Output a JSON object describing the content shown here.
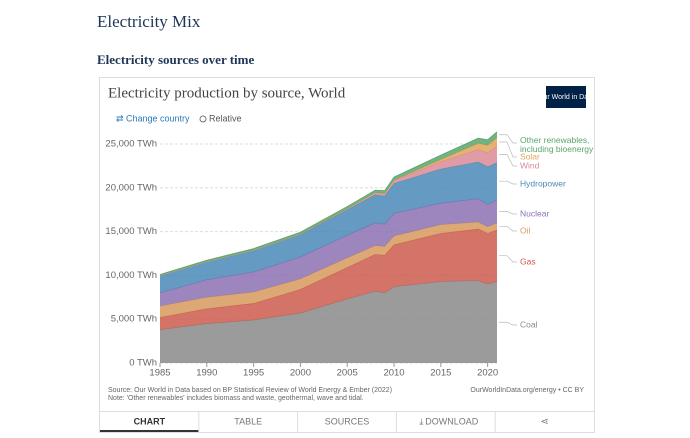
{
  "page": {
    "heading": "Electricity Mix",
    "subheading": "Electricity sources over time"
  },
  "chart_data": {
    "type": "stacked_area",
    "title": "Electricity production by source, World",
    "logo": "Our World in Data",
    "controls": [
      "Change country",
      "Relative"
    ],
    "x": [
      1985,
      1990,
      1995,
      2000,
      2005,
      2008,
      2009,
      2010,
      2015,
      2019,
      2020,
      2021
    ],
    "xlim": [
      1985,
      2021
    ],
    "xticks": [
      1985,
      1990,
      1995,
      2000,
      2005,
      2010,
      2015,
      2020
    ],
    "ylim": [
      0,
      25000
    ],
    "yticks": [
      {
        "value": 0,
        "label": "0 TWh"
      },
      {
        "value": 5000,
        "label": "5,000 TWh"
      },
      {
        "value": 10000,
        "label": "10,000 TWh"
      },
      {
        "value": 15000,
        "label": "15,000 TWh"
      },
      {
        "value": 20000,
        "label": "20,000 TWh"
      },
      {
        "value": 25000,
        "label": "25,000 TWh"
      }
    ],
    "grid": true,
    "series": [
      {
        "name": "Coal",
        "color": "#8a8a8a",
        "values": [
          3800,
          4500,
          4900,
          5700,
          7300,
          8200,
          8000,
          8700,
          9300,
          9400,
          9000,
          9300
        ]
      },
      {
        "name": "Gas",
        "color": "#cc5a4c",
        "values": [
          1400,
          1700,
          1900,
          2700,
          3600,
          4200,
          4300,
          4800,
          5500,
          5900,
          5800,
          5900
        ]
      },
      {
        "name": "Oil",
        "color": "#d69a5e",
        "values": [
          1300,
          1300,
          1300,
          1200,
          1100,
          1000,
          1000,
          1000,
          1000,
          800,
          750,
          780
        ]
      },
      {
        "name": "Nuclear",
        "color": "#8c70b3",
        "values": [
          1500,
          2000,
          2300,
          2500,
          2600,
          2600,
          2550,
          2600,
          2450,
          2650,
          2550,
          2650
        ]
      },
      {
        "name": "Hydropower",
        "color": "#4a8ab7",
        "values": [
          2000,
          2100,
          2500,
          2600,
          2900,
          3200,
          3200,
          3400,
          3900,
          4200,
          4300,
          4250
        ]
      },
      {
        "name": "Wind",
        "color": "#d98b96",
        "values": [
          0,
          4,
          8,
          30,
          100,
          220,
          280,
          340,
          830,
          1420,
          1600,
          1850
        ]
      },
      {
        "name": "Solar",
        "color": "#e3a35b",
        "values": [
          0,
          0,
          0,
          1,
          4,
          12,
          20,
          30,
          250,
          700,
          840,
          1000
        ]
      },
      {
        "name": "Other renewables, including bioenergy",
        "color": "#5aa56b",
        "values": [
          100,
          130,
          150,
          200,
          250,
          300,
          320,
          360,
          500,
          600,
          640,
          660
        ]
      }
    ],
    "source": "Source: Our World in Data based on BP Statistical Review of World Energy & Ember (2022)",
    "note": "Note: 'Other renewables' includes biomass and waste, geothermal, wave and tidal.",
    "credit": "OurWorldInData.org/energy • CC BY",
    "tabs": [
      "CHART",
      "TABLE",
      "SOURCES",
      "DOWNLOAD"
    ]
  }
}
